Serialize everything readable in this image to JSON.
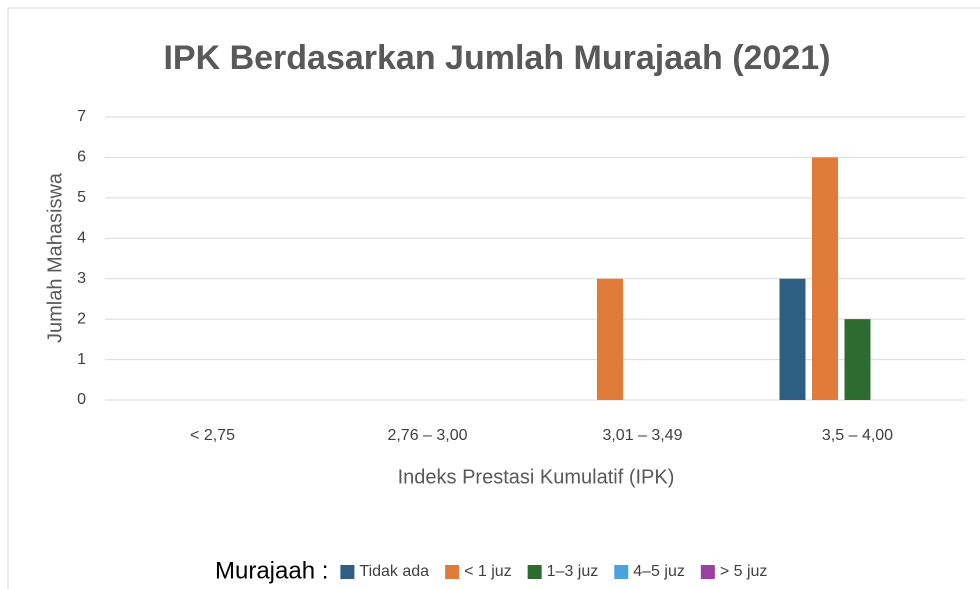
{
  "chart_data": {
    "type": "bar",
    "title": "IPK Berdasarkan Jumlah Murajaah (2021)",
    "x_label": "Indeks  Prestasi Kumulatif (IPK)",
    "y_label": "Jumlah Mahasiswa",
    "categories": [
      "< 2,75",
      "2,76 – 3,00",
      "3,01 – 3,49",
      "3,5 – 4,00"
    ],
    "series": [
      {
        "name": "Tidak ada",
        "color": "#2e5f82",
        "values": [
          0,
          0,
          0,
          3
        ]
      },
      {
        "name": "< 1 juz",
        "color": "#e07b39",
        "values": [
          0,
          0,
          3,
          6
        ]
      },
      {
        "name": "1–3 juz",
        "color": "#2e6b30",
        "values": [
          0,
          0,
          0,
          2
        ]
      },
      {
        "name": "4–5 juz",
        "color": "#4aa3df",
        "values": [
          0,
          0,
          0,
          0
        ]
      },
      {
        "name": "> 5 juz",
        "color": "#9b3fa0",
        "values": [
          0,
          0,
          0,
          0
        ]
      }
    ],
    "legend_title": "Murajaah :",
    "legend": "bottom",
    "ylim": [
      0,
      7
    ],
    "yticks": [
      0,
      1,
      2,
      3,
      4,
      5,
      6,
      7
    ],
    "grid": true
  }
}
